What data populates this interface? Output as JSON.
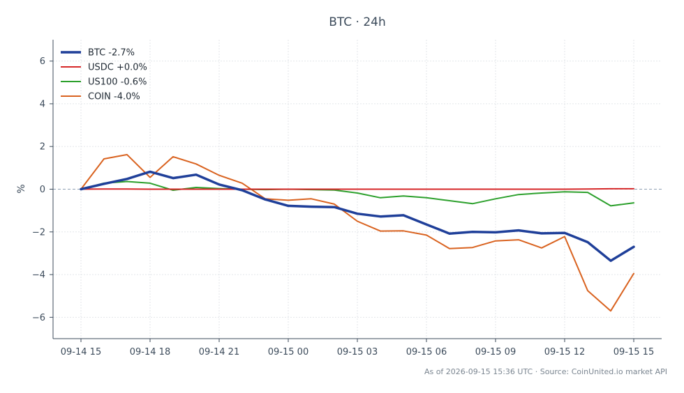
{
  "chart_data": {
    "type": "line",
    "title": "BTC · 24h",
    "xlabel": "",
    "ylabel": "%",
    "x": [
      "09-14 15",
      "09-14 16",
      "09-14 17",
      "09-14 18",
      "09-14 19",
      "09-14 20",
      "09-14 21",
      "09-14 22",
      "09-14 23",
      "09-15 00",
      "09-15 01",
      "09-15 02",
      "09-15 03",
      "09-15 04",
      "09-15 05",
      "09-15 06",
      "09-15 07",
      "09-15 08",
      "09-15 09",
      "09-15 10",
      "09-15 11",
      "09-15 12",
      "09-15 13",
      "09-15 14",
      "09-15 15"
    ],
    "x_ticks": [
      "09-14 15",
      "09-14 18",
      "09-14 21",
      "09-15 00",
      "09-15 03",
      "09-15 06",
      "09-15 09",
      "09-15 12",
      "09-15 15"
    ],
    "y_ticks": [
      -6,
      -4,
      -2,
      0,
      2,
      4,
      6
    ],
    "y_tick_labels": [
      "−6",
      "−4",
      "−2",
      "0",
      "2",
      "4",
      "6"
    ],
    "ylim": [
      -7,
      7
    ],
    "grid": true,
    "zero_line": true,
    "legend_position": "top-left",
    "series": [
      {
        "name": "BTC -2.7%",
        "color": "#1f3f99",
        "width": 3.5,
        "values": [
          0.0,
          0.25,
          0.48,
          0.82,
          0.52,
          0.68,
          0.22,
          -0.05,
          -0.48,
          -0.78,
          -0.82,
          -0.84,
          -1.15,
          -1.28,
          -1.22,
          -1.65,
          -2.08,
          -2.0,
          -2.02,
          -1.93,
          -2.07,
          -2.05,
          -2.48,
          -3.35,
          -2.7
        ]
      },
      {
        "name": "USDC +0.0%",
        "color": "#d62728",
        "width": 2,
        "values": [
          0.0,
          0.01,
          0.01,
          0.0,
          0.0,
          0.0,
          0.0,
          0.0,
          0.0,
          0.0,
          0.0,
          0.0,
          0.0,
          0.0,
          0.0,
          0.0,
          0.0,
          0.0,
          0.0,
          0.0,
          0.0,
          0.0,
          0.01,
          0.02,
          0.02
        ]
      },
      {
        "name": "US100 -0.6%",
        "color": "#2ca02c",
        "width": 2,
        "values": [
          0.0,
          0.28,
          0.36,
          0.28,
          -0.05,
          0.08,
          0.03,
          0.0,
          -0.02,
          0.0,
          -0.02,
          -0.04,
          -0.18,
          -0.4,
          -0.32,
          -0.4,
          -0.54,
          -0.68,
          -0.45,
          -0.25,
          -0.18,
          -0.12,
          -0.15,
          -0.78,
          -0.64
        ]
      },
      {
        "name": "COIN -4.0%",
        "color": "#d9621f",
        "width": 2,
        "values": [
          0.0,
          1.42,
          1.62,
          0.55,
          1.52,
          1.18,
          0.65,
          0.28,
          -0.45,
          -0.52,
          -0.45,
          -0.7,
          -1.5,
          -1.96,
          -1.95,
          -2.15,
          -2.78,
          -2.73,
          -2.42,
          -2.37,
          -2.75,
          -2.22,
          -4.75,
          -5.7,
          -3.95
        ]
      }
    ]
  },
  "footer": {
    "text": "As of 2026-09-15 15:36 UTC · Source: CoinUnited.io market API"
  }
}
